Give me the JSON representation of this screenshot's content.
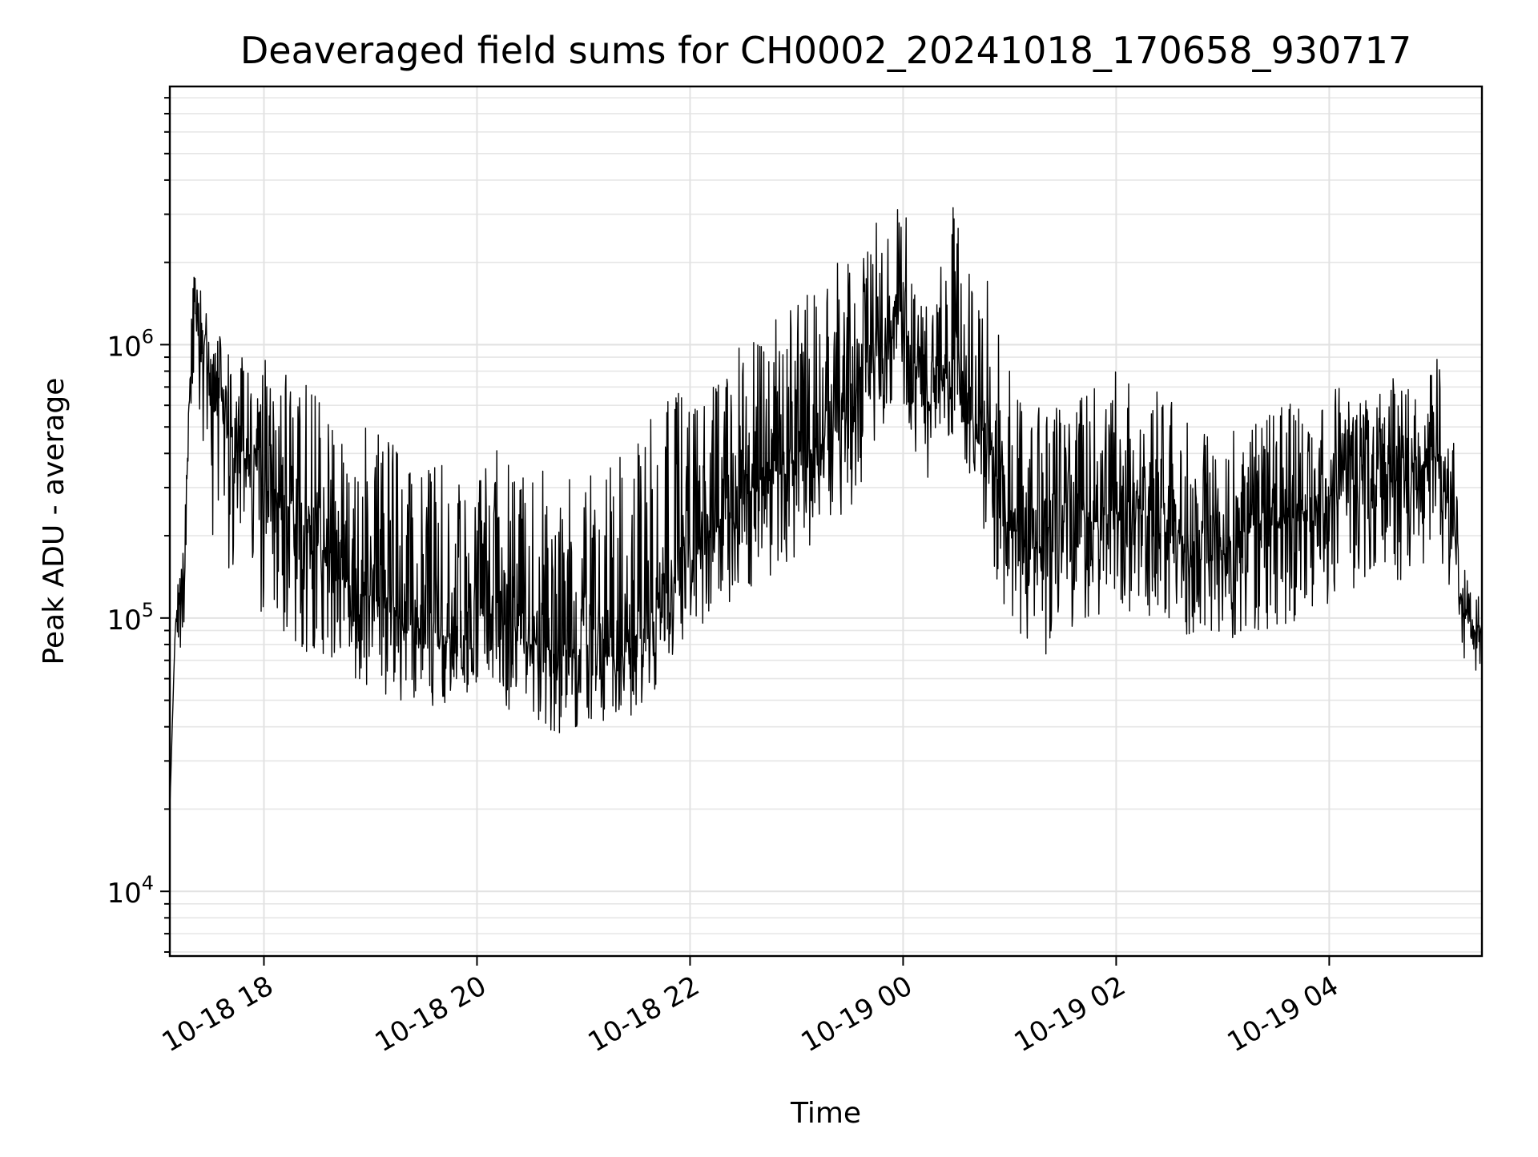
{
  "chart_data": {
    "type": "line",
    "title": "Deaveraged field sums for CH0002_20241018_170658_930717",
    "xlabel": "Time",
    "ylabel": "Peak ADU - average",
    "yscale": "log",
    "ylim": [
      5800,
      8800000
    ],
    "xlim": [
      "2024-10-18 17:07",
      "2024-10-19 05:26"
    ],
    "grid": "on (major and minor)",
    "legend": "none",
    "line_color": "#000000",
    "x_ticks": [
      {
        "label": "10-18 18",
        "time": "2024-10-18 18:00"
      },
      {
        "label": "10-18 20",
        "time": "2024-10-18 20:00"
      },
      {
        "label": "10-18 22",
        "time": "2024-10-18 22:00"
      },
      {
        "label": "10-19 00",
        "time": "2024-10-19 00:00"
      },
      {
        "label": "10-19 02",
        "time": "2024-10-19 02:00"
      },
      {
        "label": "10-19 04",
        "time": "2024-10-19 04:00"
      }
    ],
    "y_ticks": [
      {
        "base": "10",
        "exp": "4",
        "value": 10000
      },
      {
        "base": "10",
        "exp": "5",
        "value": 100000
      },
      {
        "base": "10",
        "exp": "6",
        "value": 1000000
      }
    ],
    "series": [
      {
        "x": [
          "2024-10-18 17:07",
          "2024-10-18 17:10",
          "2024-10-18 17:15",
          "2024-10-18 17:20",
          "2024-10-18 17:25",
          "2024-10-18 17:30",
          "2024-10-18 17:40",
          "2024-10-18 17:50",
          "2024-10-18 18:00",
          "2024-10-18 18:15",
          "2024-10-18 18:30",
          "2024-10-18 18:45",
          "2024-10-18 19:00",
          "2024-10-18 19:15",
          "2024-10-18 19:30",
          "2024-10-18 19:45",
          "2024-10-18 20:00",
          "2024-10-18 20:15",
          "2024-10-18 20:30",
          "2024-10-18 20:45",
          "2024-10-18 21:00",
          "2024-10-18 21:15",
          "2024-10-18 21:30",
          "2024-10-18 21:45",
          "2024-10-18 22:00",
          "2024-10-18 22:15",
          "2024-10-18 22:30",
          "2024-10-18 22:45",
          "2024-10-18 23:00",
          "2024-10-18 23:15",
          "2024-10-18 23:30",
          "2024-10-18 23:45",
          "2024-10-19 00:00",
          "2024-10-19 00:15",
          "2024-10-19 00:30",
          "2024-10-19 00:45",
          "2024-10-19 01:00",
          "2024-10-19 01:15",
          "2024-10-19 01:30",
          "2024-10-19 01:45",
          "2024-10-19 02:00",
          "2024-10-19 02:15",
          "2024-10-19 02:30",
          "2024-10-19 02:45",
          "2024-10-19 03:00",
          "2024-10-19 03:15",
          "2024-10-19 03:30",
          "2024-10-19 03:45",
          "2024-10-19 04:00",
          "2024-10-19 04:15",
          "2024-10-19 04:30",
          "2024-10-19 04:45",
          "2024-10-19 05:00",
          "2024-10-19 05:10",
          "2024-10-19 05:15",
          "2024-10-19 05:20",
          "2024-10-19 05:26"
        ],
        "y": [
          20000,
          90000,
          150000,
          1500000,
          1200000,
          600000,
          480000,
          380000,
          330000,
          250000,
          190000,
          140000,
          120000,
          100000,
          90000,
          85000,
          110000,
          100000,
          80000,
          75000,
          70000,
          72000,
          80000,
          120000,
          160000,
          210000,
          280000,
          320000,
          380000,
          460000,
          560000,
          900000,
          1200000,
          600000,
          900000,
          500000,
          220000,
          180000,
          200000,
          230000,
          260000,
          250000,
          240000,
          160000,
          180000,
          220000,
          220000,
          250000,
          280000,
          300000,
          310000,
          330000,
          400000,
          220000,
          110000,
          90000,
          85000
        ],
        "y_low": [
          20000,
          60000,
          90000,
          700000,
          500000,
          200000,
          150000,
          110000,
          100000,
          80000,
          70000,
          60000,
          55000,
          50000,
          48000,
          45000,
          55000,
          45000,
          40000,
          38000,
          38000,
          40000,
          45000,
          60000,
          80000,
          100000,
          120000,
          140000,
          160000,
          200000,
          250000,
          400000,
          500000,
          300000,
          400000,
          200000,
          90000,
          70000,
          80000,
          90000,
          100000,
          100000,
          100000,
          80000,
          80000,
          90000,
          90000,
          100000,
          110000,
          120000,
          130000,
          140000,
          170000,
          120000,
          70000,
          65000,
          62000
        ],
        "y_high": [
          20000,
          110000,
          220000,
          1800000,
          1600000,
          1200000,
          1000000,
          900000,
          900000,
          850000,
          700000,
          600000,
          500000,
          420000,
          380000,
          380000,
          450000,
          420000,
          400000,
          380000,
          350000,
          380000,
          450000,
          650000,
          800000,
          900000,
          1000000,
          1200000,
          1600000,
          1800000,
          2200000,
          3000000,
          3200000,
          1800000,
          3500000,
          2000000,
          900000,
          700000,
          600000,
          700000,
          800000,
          750000,
          700000,
          500000,
          500000,
          550000,
          600000,
          650000,
          700000,
          700000,
          750000,
          800000,
          1100000,
          500000,
          200000,
          130000,
          120000
        ]
      }
    ]
  }
}
